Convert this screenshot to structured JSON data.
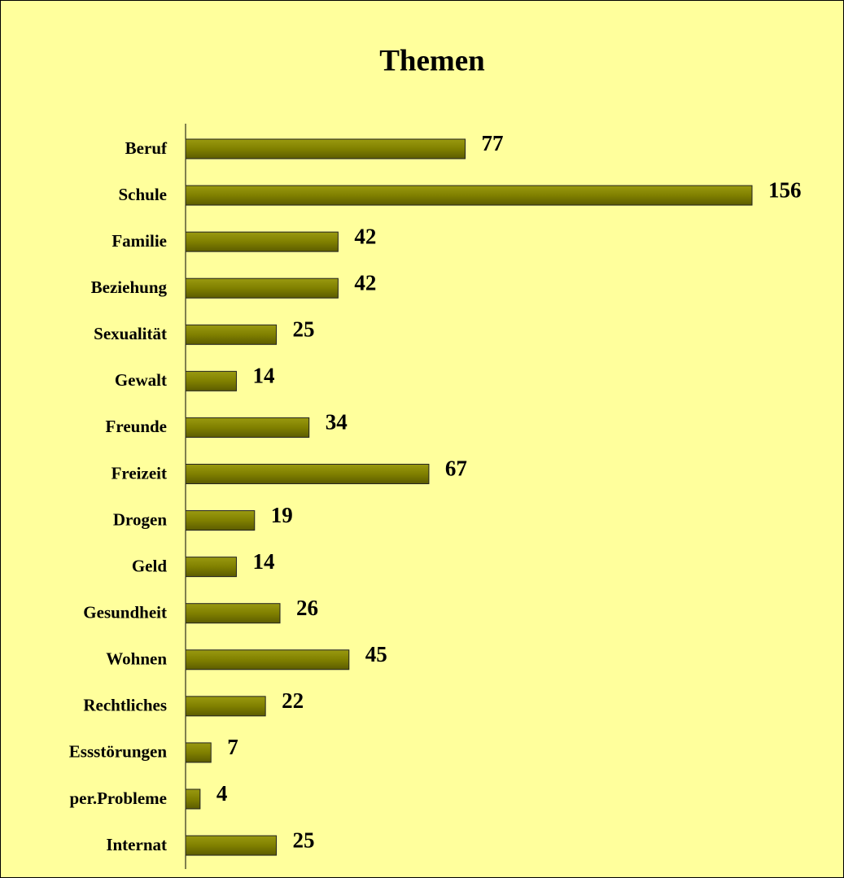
{
  "chart_data": {
    "type": "bar",
    "orientation": "horizontal",
    "title": "Themen",
    "categories": [
      "Beruf",
      "Schule",
      "Familie",
      "Beziehung",
      "Sexualität",
      "Gewalt",
      "Freunde",
      "Freizeit",
      "Drogen",
      "Geld",
      "Gesundheit",
      "Wohnen",
      "Rechtliches",
      "Essstörungen",
      "per.Probleme",
      "Internat"
    ],
    "values": [
      77,
      156,
      42,
      42,
      25,
      14,
      34,
      67,
      19,
      14,
      26,
      45,
      22,
      7,
      4,
      25
    ],
    "color": "#808000",
    "grid": false
  }
}
